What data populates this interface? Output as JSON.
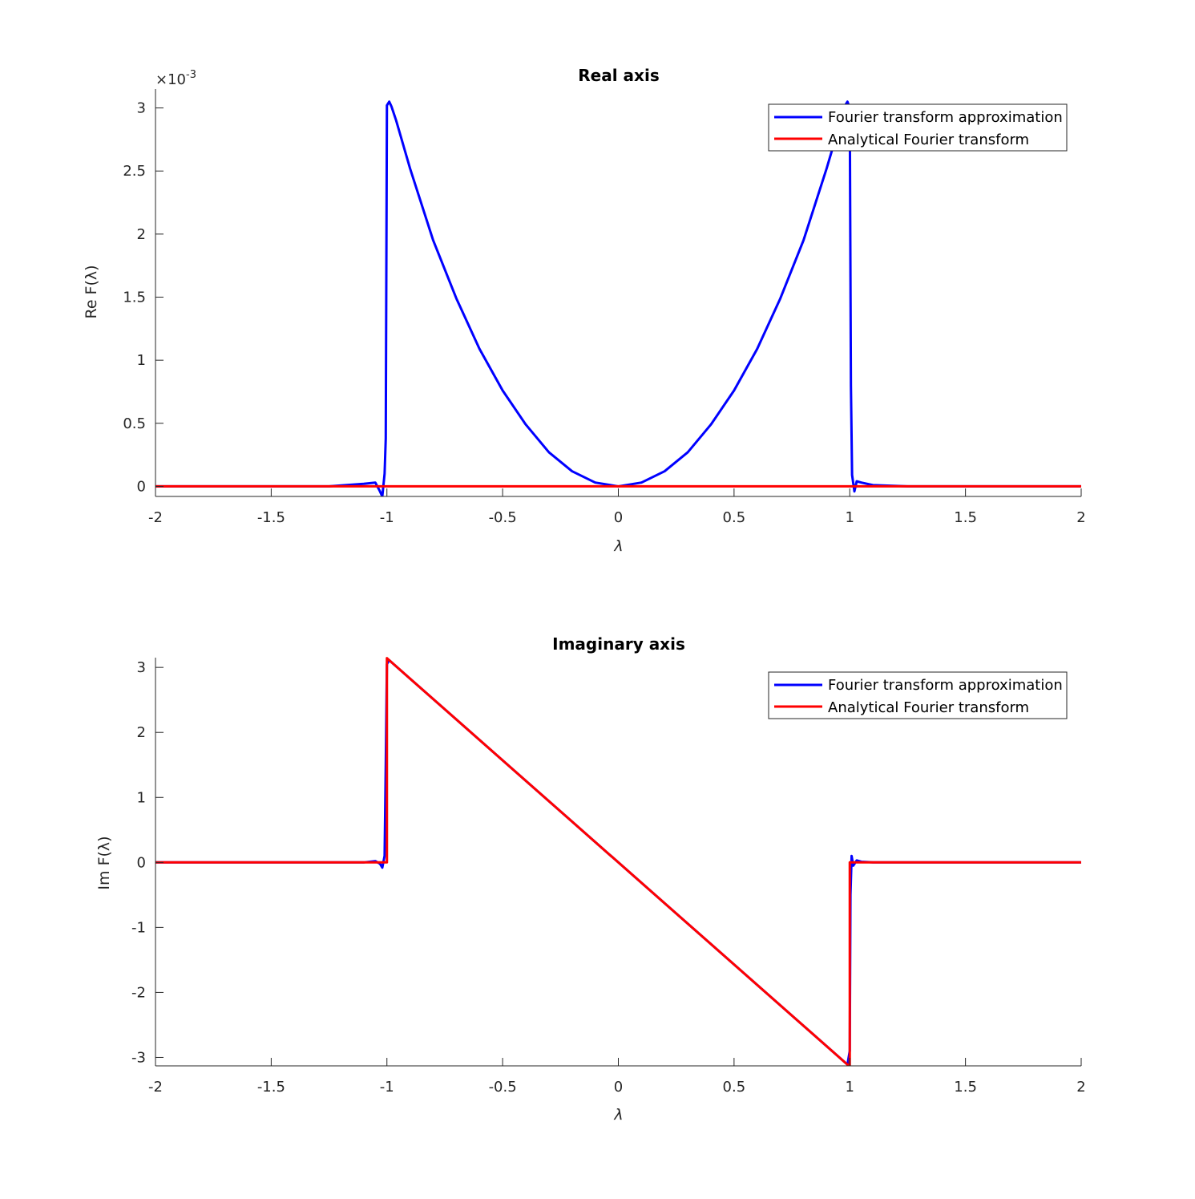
{
  "figure": {
    "background": "#ffffff",
    "colors": {
      "approximation": "#0000ff",
      "analytical": "#ff0000",
      "axes": "#262626"
    }
  },
  "chart_data": [
    {
      "type": "line",
      "title": "Real axis",
      "xlabel": "λ",
      "ylabel": "Re F(λ)",
      "ytick_multiplier": "×10",
      "ytick_exponent": "-3",
      "xlim": [
        -2,
        2
      ],
      "ylim": [
        -8e-05,
        0.00315
      ],
      "xticks": [
        -2,
        -1.5,
        -1,
        -0.5,
        0,
        0.5,
        1,
        1.5,
        2
      ],
      "xtick_labels": [
        "-2",
        "-1.5",
        "-1",
        "-0.5",
        "0",
        "0.5",
        "1",
        "1.5",
        "2"
      ],
      "yticks": [
        0,
        0.0005,
        0.001,
        0.0015,
        0.002,
        0.0025,
        0.003
      ],
      "ytick_labels": [
        "0",
        "0.5",
        "1",
        "1.5",
        "2",
        "2.5",
        "3"
      ],
      "legend_position": "top-right",
      "grid": false,
      "series": [
        {
          "name": "Fourier transform approximation",
          "color": "#0000ff",
          "x": [
            -2,
            -1.25,
            -1.1,
            -1.05,
            -1.03,
            -1.02,
            -1.01,
            -1.005,
            -1.0,
            -0.99,
            -0.98,
            -0.96,
            -0.9,
            -0.8,
            -0.7,
            -0.6,
            -0.5,
            -0.4,
            -0.3,
            -0.2,
            -0.1,
            0,
            0.1,
            0.2,
            0.3,
            0.4,
            0.5,
            0.6,
            0.7,
            0.8,
            0.9,
            0.95,
            0.98,
            0.99,
            1.0,
            1.005,
            1.01,
            1.02,
            1.03,
            1.05,
            1.1,
            1.25,
            2
          ],
          "y": [
            0,
            0,
            2e-05,
            3e-05,
            -4e-05,
            -8e-05,
            0.0001,
            0.00038,
            0.00302,
            0.00305,
            0.00301,
            0.0029,
            0.00252,
            0.00195,
            0.00149,
            0.00109,
            0.00076,
            0.00049,
            0.00027,
            0.00012,
            3e-05,
            0,
            3e-05,
            0.00012,
            0.00027,
            0.00049,
            0.00076,
            0.00109,
            0.00149,
            0.00195,
            0.00252,
            0.00283,
            0.00302,
            0.00305,
            0.003,
            0.0008,
            9e-05,
            -4e-05,
            4e-05,
            3e-05,
            1e-05,
            0,
            0
          ]
        },
        {
          "name": "Analytical Fourier transform",
          "color": "#ff0000",
          "x": [
            -2,
            2
          ],
          "y": [
            0,
            0
          ]
        }
      ]
    },
    {
      "type": "line",
      "title": "Imaginary axis",
      "xlabel": "λ",
      "ylabel": "Im F(λ)",
      "xlim": [
        -2,
        2
      ],
      "ylim": [
        -3.13,
        3.15
      ],
      "xticks": [
        -2,
        -1.5,
        -1,
        -0.5,
        0,
        0.5,
        1,
        1.5,
        2
      ],
      "xtick_labels": [
        "-2",
        "-1.5",
        "-1",
        "-0.5",
        "0",
        "0.5",
        "1",
        "1.5",
        "2"
      ],
      "yticks": [
        -3,
        -2,
        -1,
        0,
        1,
        2,
        3
      ],
      "ytick_labels": [
        "-3",
        "-2",
        "-1",
        "0",
        "1",
        "2",
        "3"
      ],
      "legend_position": "top-right",
      "grid": false,
      "series": [
        {
          "name": "Fourier transform approximation",
          "color": "#0000ff",
          "x": [
            -2,
            -1.1,
            -1.05,
            -1.03,
            -1.02,
            -1.01,
            -1.005,
            -1.0,
            -0.99,
            0,
            0.99,
            1.0,
            1.003,
            1.008,
            1.015,
            1.03,
            1.05,
            1.1,
            2
          ],
          "y": [
            0,
            0,
            0.02,
            -0.02,
            -0.08,
            0.1,
            1.5,
            3.05,
            3.11,
            0,
            -3.11,
            -2.9,
            -0.5,
            0.1,
            -0.05,
            0.03,
            0.01,
            0,
            0
          ]
        },
        {
          "name": "Analytical Fourier transform",
          "color": "#ff0000",
          "x": [
            -2,
            -1.0,
            -1.0,
            1.0,
            1.0,
            2
          ],
          "y": [
            0,
            0,
            3.14159,
            -3.14159,
            0,
            0
          ]
        }
      ]
    }
  ]
}
